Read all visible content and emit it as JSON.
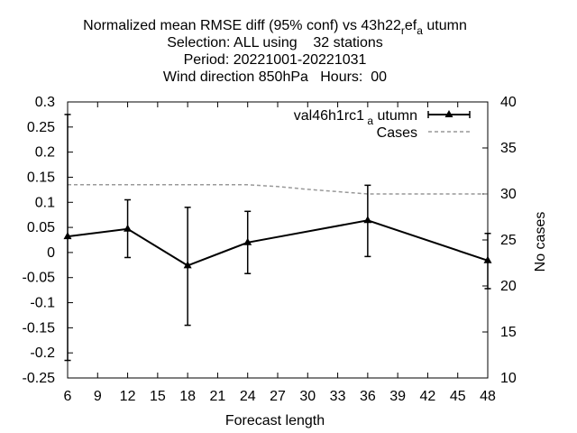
{
  "chart_data": {
    "type": "line",
    "title_lines": [
      "Normalized mean RMSE diff (95% conf) vs 43h22_ref_autumn",
      "Selection: ALL using    32 stations",
      "Period: 20221001-20221031",
      "Wind direction 850hPa   Hours:  00"
    ],
    "xlabel": "Forecast length",
    "ylabel": "",
    "y2label": "No cases",
    "x_ticks": [
      6,
      9,
      12,
      15,
      18,
      21,
      24,
      27,
      30,
      33,
      36,
      39,
      42,
      45,
      48
    ],
    "xlim": [
      6,
      48
    ],
    "ylim": [
      -0.25,
      0.3
    ],
    "y_ticks": [
      -0.25,
      -0.2,
      -0.15,
      -0.1,
      -0.05,
      0,
      0.05,
      0.1,
      0.15,
      0.2,
      0.25,
      0.3
    ],
    "y_tick_labels": [
      "-0.25",
      "-0.2",
      "-0.15",
      "-0.1",
      "-0.05",
      "0",
      "0.05",
      "0.1",
      "0.15",
      "0.2",
      "0.25",
      "0.3"
    ],
    "y2lim": [
      10,
      40
    ],
    "y2_ticks": [
      10,
      15,
      20,
      25,
      30,
      35,
      40
    ],
    "grid": false,
    "legend_position": "top-right",
    "series": [
      {
        "name": "val46h1rc1_autumn",
        "color": "#000000",
        "axis": "left",
        "x": [
          6,
          12,
          18,
          24,
          36,
          48
        ],
        "y": [
          0.032,
          0.047,
          -0.026,
          0.02,
          0.064,
          -0.016
        ],
        "err_low": [
          -0.215,
          -0.01,
          -0.145,
          -0.042,
          -0.008,
          -0.072
        ],
        "err_high": [
          0.275,
          0.105,
          0.09,
          0.082,
          0.134,
          0.038
        ]
      },
      {
        "name": "Cases",
        "color": "#999999",
        "axis": "right",
        "style": "dashed",
        "x": [
          6,
          12,
          18,
          24,
          27,
          30,
          36,
          42,
          48
        ],
        "y": [
          31,
          31,
          31,
          31,
          30.8,
          30.5,
          30,
          30,
          30
        ]
      }
    ]
  }
}
